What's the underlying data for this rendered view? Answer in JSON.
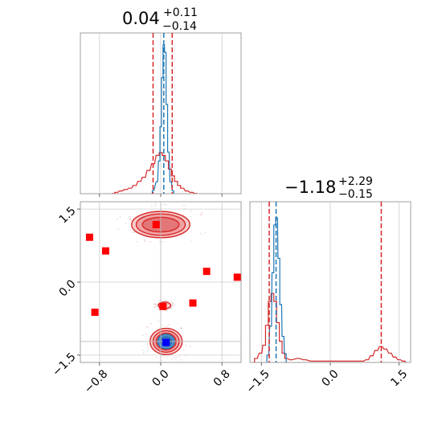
{
  "chart_data": {
    "type": "corner",
    "param1": {
      "title_value": "0.04",
      "title_plus": "+0.11",
      "title_minus": "−0.14",
      "median": 0.04,
      "lower": -0.1,
      "upper": 0.15,
      "truth": 0.0,
      "xlim": [
        -1.05,
        1.05
      ],
      "ticks": [
        -0.8,
        0.0,
        0.8
      ],
      "tick_labels": [
        "−0.8",
        "0.0",
        "0.8"
      ]
    },
    "param2": {
      "title_value": "−1.18",
      "title_plus": "+2.29",
      "title_minus": "−0.15",
      "median": -1.18,
      "lower": -1.33,
      "upper": 1.11,
      "truth": -1.22,
      "xlim": [
        -1.75,
        1.75
      ],
      "ylim": [
        -1.65,
        1.65
      ],
      "ticks": [
        -1.5,
        0.0,
        1.5
      ],
      "tick_labels": [
        "−1.5",
        "0.0",
        "1.5"
      ]
    },
    "hist1_blue": [
      [
        -0.1,
        0.02
      ],
      [
        -0.05,
        0.08
      ],
      [
        -0.02,
        0.22
      ],
      [
        0.0,
        0.45
      ],
      [
        0.02,
        0.78
      ],
      [
        0.04,
        1.0
      ],
      [
        0.06,
        0.95
      ],
      [
        0.08,
        0.6
      ],
      [
        0.1,
        0.28
      ],
      [
        0.13,
        0.08
      ],
      [
        0.16,
        0.02
      ]
    ],
    "hist1_red": [
      [
        -0.62,
        0.0
      ],
      [
        -0.58,
        0.01
      ],
      [
        -0.52,
        0.02
      ],
      [
        -0.46,
        0.03
      ],
      [
        -0.4,
        0.04
      ],
      [
        -0.34,
        0.06
      ],
      [
        -0.28,
        0.09
      ],
      [
        -0.22,
        0.12
      ],
      [
        -0.16,
        0.17
      ],
      [
        -0.1,
        0.22
      ],
      [
        -0.04,
        0.28
      ],
      [
        0.0,
        0.3
      ],
      [
        0.04,
        0.28
      ],
      [
        0.08,
        0.24
      ],
      [
        0.12,
        0.18
      ],
      [
        0.16,
        0.13
      ],
      [
        0.2,
        0.09
      ],
      [
        0.24,
        0.06
      ],
      [
        0.28,
        0.04
      ],
      [
        0.34,
        0.02
      ],
      [
        0.4,
        0.01
      ],
      [
        0.46,
        0.0
      ]
    ],
    "hist2_blue": [
      [
        -1.36,
        0.05
      ],
      [
        -1.3,
        0.25
      ],
      [
        -1.25,
        0.62
      ],
      [
        -1.21,
        0.95
      ],
      [
        -1.17,
        1.0
      ],
      [
        -1.12,
        0.72
      ],
      [
        -1.08,
        0.4
      ],
      [
        -1.03,
        0.18
      ],
      [
        -0.98,
        0.06
      ]
    ],
    "hist2_red": [
      [
        -1.62,
        0.03
      ],
      [
        -1.52,
        0.07
      ],
      [
        -1.44,
        0.13
      ],
      [
        -1.38,
        0.28
      ],
      [
        -1.32,
        0.46
      ],
      [
        -1.26,
        0.52
      ],
      [
        -1.2,
        0.46
      ],
      [
        -1.14,
        0.3
      ],
      [
        -1.08,
        0.16
      ],
      [
        -1.02,
        0.07
      ],
      [
        -0.96,
        0.03
      ],
      [
        -0.86,
        0.02
      ],
      [
        -0.7,
        0.03
      ],
      [
        -0.56,
        0.02
      ],
      [
        -0.4,
        0.01
      ],
      [
        0.7,
        0.01
      ],
      [
        0.8,
        0.02
      ],
      [
        0.9,
        0.05
      ],
      [
        1.0,
        0.09
      ],
      [
        1.1,
        0.12
      ],
      [
        1.2,
        0.1
      ],
      [
        1.3,
        0.07
      ],
      [
        1.4,
        0.04
      ],
      [
        1.5,
        0.02
      ],
      [
        1.6,
        0.01
      ]
    ],
    "contours_red": [
      {
        "cx": 0.0,
        "cy": 1.18,
        "rx": [
          0.38,
          0.32,
          0.24
        ],
        "ry": [
          0.27,
          0.22,
          0.15
        ]
      },
      {
        "cx": 0.05,
        "cy": -0.48,
        "rx": [
          0.08
        ],
        "ry": [
          0.07
        ]
      },
      {
        "cx": 0.07,
        "cy": -1.22,
        "rx": [
          0.21,
          0.17,
          0.13
        ],
        "ry": [
          0.27,
          0.22,
          0.17
        ]
      }
    ],
    "contours_blue": [
      {
        "cx": 0.07,
        "cy": -1.22,
        "rx": [
          0.11,
          0.075
        ],
        "ry": [
          0.15,
          0.1
        ]
      }
    ],
    "red_points": [
      [
        -0.93,
        0.92
      ],
      [
        -0.72,
        0.64
      ],
      [
        -0.86,
        -0.62
      ],
      [
        0.6,
        0.22
      ],
      [
        0.42,
        -0.43
      ],
      [
        0.03,
        -0.5
      ],
      [
        1.0,
        0.1
      ],
      [
        -0.06,
        1.18
      ]
    ],
    "blue_point": [
      0.07,
      -1.24
    ],
    "colors": {
      "red": "#d62728",
      "blue": "#1f77b4",
      "marker_blue": "#0000ff",
      "red_fill": "#f4a0a0",
      "blue_fill": "#7fa9d8"
    }
  }
}
